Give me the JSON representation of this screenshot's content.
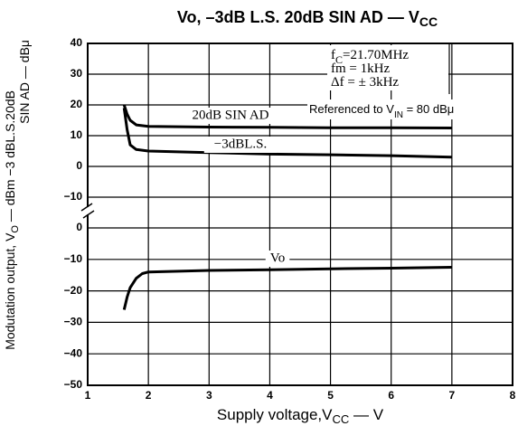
{
  "chart_data": [
    {
      "type": "line",
      "title": [
        "Vo, –3dB L.S. 20dB SIN AD — V",
        "CC"
      ],
      "xlabel": [
        "Supply voltage,V",
        "CC",
        " — V"
      ],
      "ylabel": [
        [
          "Modutation output, V",
          "O",
          " — dBm −3 dBL.S.20dB"
        ],
        [
          "SIN AD — dBμ"
        ]
      ],
      "xlim": [
        1,
        8
      ],
      "xticks": [
        1,
        2,
        3,
        4,
        5,
        6,
        7,
        8
      ],
      "ylim": [
        -10,
        40
      ],
      "yticks": [
        40,
        30,
        20,
        10,
        0,
        {
          "value": -10,
          "label": "−10"
        }
      ],
      "grid": true,
      "color": "#000000",
      "annotations": [
        [
          "f",
          "C",
          "=21.70MHz"
        ],
        [
          "fm = 1kHz"
        ],
        [
          "Δf = ± 3kHz"
        ],
        [
          "Referenced to V",
          "IN",
          " = 80 dBμ"
        ]
      ],
      "series": [
        {
          "name": "20dB SIN AD",
          "color": "#000000",
          "x": [
            1.6,
            1.65,
            1.7,
            1.8,
            2,
            3,
            4,
            5,
            6,
            7
          ],
          "values": [
            20,
            17,
            15,
            13.5,
            13,
            12.8,
            12.7,
            12.6,
            12.6,
            12.5
          ]
        },
        {
          "name": "−3dBL.S.",
          "color": "#000000",
          "x": [
            1.6,
            1.65,
            1.7,
            1.8,
            2,
            3,
            4,
            5,
            6,
            7
          ],
          "values": [
            19,
            12,
            7,
            5.5,
            5,
            4.5,
            4,
            3.8,
            3.5,
            3
          ]
        }
      ]
    },
    {
      "type": "line",
      "ylim": [
        -50,
        0
      ],
      "yticks": [
        0,
        {
          "value": -10,
          "label": "−10"
        },
        {
          "value": -20,
          "label": "−20"
        },
        {
          "value": -30,
          "label": "−30"
        },
        {
          "value": -40,
          "label": "−40"
        },
        {
          "value": -50,
          "label": "−50"
        }
      ],
      "grid": true,
      "series": [
        {
          "name": "Vo",
          "color": "#000000",
          "x": [
            1.6,
            1.65,
            1.7,
            1.8,
            1.9,
            2,
            3,
            4,
            5,
            6,
            7
          ],
          "values": [
            -26,
            -22,
            -19,
            -16,
            -14.5,
            -14,
            -13.5,
            -13.3,
            -13,
            -12.8,
            -12.5
          ]
        }
      ]
    }
  ]
}
